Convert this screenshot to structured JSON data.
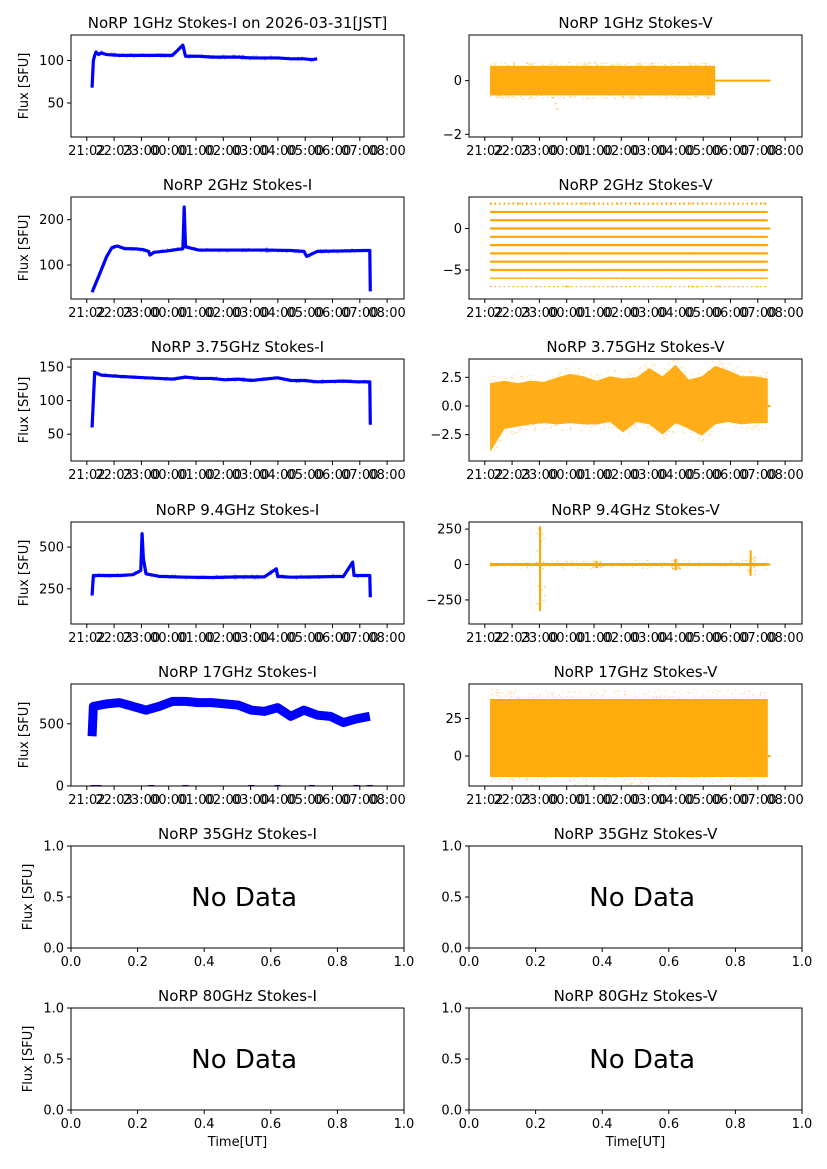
{
  "figure": {
    "colors": {
      "stokes_i": "#0000ff",
      "stokes_v": "#ffa500",
      "axis": "#000000",
      "background": "#ffffff"
    },
    "time_ticks": [
      "21:00",
      "22:00",
      "23:00",
      "00:00",
      "01:00",
      "02:00",
      "03:00",
      "04:00",
      "05:00",
      "06:00",
      "07:00",
      "08:00"
    ],
    "time_tick_display": [
      "21:02",
      "22:03",
      "23:00",
      "00:00",
      "01:00",
      "02:00",
      "03:00",
      "04:00",
      "05:00",
      "06:00",
      "07:00",
      "08:00"
    ],
    "xlabel": "Time[UT]",
    "no_data_text": "No Data"
  },
  "chart_data": [
    {
      "id": "p1i",
      "type": "scatter",
      "title": "NoRP 1GHz Stokes-I on 2026-03-31[JST]",
      "ylabel": "Flux [SFU]",
      "xlabel": "",
      "color": "#0000ff",
      "ylim": [
        10,
        130
      ],
      "yticks": [
        50,
        100
      ],
      "ytick_labels": [
        "50",
        "100"
      ],
      "xlim_hours": [
        -3.35,
        9.3
      ],
      "series": [
        {
          "values": [
            [
              -2.55,
              68
            ],
            [
              -2.5,
              100
            ],
            [
              -2.45,
              106
            ],
            [
              -2.4,
              110
            ],
            [
              -2.3,
              107
            ],
            [
              -2.2,
              109
            ],
            [
              -2.0,
              107
            ],
            [
              -1.5,
              106
            ],
            [
              -1.0,
              106
            ],
            [
              -0.5,
              106
            ],
            [
              0.0,
              106
            ],
            [
              0.5,
              106
            ],
            [
              0.9,
              118
            ],
            [
              1.0,
              105
            ],
            [
              1.5,
              105
            ],
            [
              2.0,
              104
            ],
            [
              2.5,
              104
            ],
            [
              3.0,
              104
            ],
            [
              3.5,
              103
            ],
            [
              4.0,
              103
            ],
            [
              4.5,
              103
            ],
            [
              5.0,
              102
            ],
            [
              5.5,
              102
            ],
            [
              5.8,
              101
            ],
            [
              6.0,
              102
            ]
          ]
        }
      ]
    },
    {
      "id": "p1v",
      "type": "scatter",
      "title": "NoRP 1GHz Stokes-V",
      "ylabel": "",
      "xlabel": "",
      "color": "#ffa500",
      "ylim": [
        -2.1,
        1.7
      ],
      "yticks": [
        -2,
        0
      ],
      "ytick_labels": [
        "−2",
        "0"
      ],
      "xlim_hours": [
        -3.35,
        9.3
      ],
      "series": [
        {
          "values": [
            [
              -2.55,
              0
            ],
            [
              -1.0,
              0
            ],
            [
              1.0,
              0
            ],
            [
              3.0,
              0
            ],
            [
              5.0,
              0
            ],
            [
              6.0,
              0
            ],
            [
              8.1,
              0
            ]
          ]
        }
      ],
      "band": {
        "from": -2.55,
        "to": 6.0,
        "low": -0.55,
        "high": 0.55
      },
      "tail": {
        "from": 6.0,
        "to": 8.1,
        "value": 0
      },
      "outliers": [
        [
          0.0,
          -1.05
        ],
        [
          -0.05,
          -0.85
        ]
      ]
    },
    {
      "id": "p2i",
      "type": "scatter",
      "title": "NoRP 2GHz Stokes-I",
      "ylabel": "Flux [SFU]",
      "xlabel": "",
      "color": "#0000ff",
      "ylim": [
        25,
        250
      ],
      "yticks": [
        100,
        200
      ],
      "ytick_labels": [
        "100",
        "200"
      ],
      "xlim_hours": [
        -3.35,
        9.3
      ],
      "series": [
        {
          "values": [
            [
              -2.55,
              40
            ],
            [
              -2.3,
              75
            ],
            [
              -2.0,
              118
            ],
            [
              -1.8,
              138
            ],
            [
              -1.6,
              142
            ],
            [
              -1.3,
              136
            ],
            [
              -1.0,
              136
            ],
            [
              -0.6,
              134
            ],
            [
              -0.4,
              130
            ],
            [
              -0.35,
              122
            ],
            [
              -0.2,
              128
            ],
            [
              0.3,
              131
            ],
            [
              0.9,
              136
            ],
            [
              0.95,
              228
            ],
            [
              1.0,
              140
            ],
            [
              1.5,
              133
            ],
            [
              2.0,
              133
            ],
            [
              3.0,
              133
            ],
            [
              4.0,
              133
            ],
            [
              5.0,
              132
            ],
            [
              5.5,
              130
            ],
            [
              5.6,
              119
            ],
            [
              6.0,
              130
            ],
            [
              7.0,
              131
            ],
            [
              7.8,
              132
            ],
            [
              8.0,
              132
            ],
            [
              8.02,
              42
            ]
          ]
        }
      ]
    },
    {
      "id": "p2v",
      "type": "scatter",
      "title": "NoRP 2GHz Stokes-V",
      "ylabel": "",
      "xlabel": "",
      "color": "#ffa500",
      "ylim": [
        -8.5,
        3.8
      ],
      "yticks": [
        -5,
        0
      ],
      "ytick_labels": [
        "−5",
        "0"
      ],
      "xlim_hours": [
        -3.35,
        9.3
      ],
      "series": [
        {
          "values": [
            [
              -2.55,
              0
            ],
            [
              8.0,
              0
            ]
          ]
        }
      ],
      "levels": [
        3,
        2,
        1,
        0,
        -1,
        -2,
        -3,
        -4,
        -5,
        -6,
        -7
      ],
      "levels_range": [
        -2.55,
        8.0
      ],
      "tail": {
        "from": 8.0,
        "to": 8.1,
        "value": 0
      }
    },
    {
      "id": "p3i",
      "type": "scatter",
      "title": "NoRP 3.75GHz Stokes-I",
      "ylabel": "Flux [SFU]",
      "xlabel": "",
      "color": "#0000ff",
      "ylim": [
        10,
        162
      ],
      "yticks": [
        50,
        100,
        150
      ],
      "ytick_labels": [
        "50",
        "100",
        "150"
      ],
      "xlim_hours": [
        -3.35,
        9.3
      ],
      "series": [
        {
          "values": [
            [
              -2.55,
              60
            ],
            [
              -2.45,
              142
            ],
            [
              -2.2,
              138
            ],
            [
              -1.5,
              136
            ],
            [
              -1.0,
              135
            ],
            [
              -0.5,
              134
            ],
            [
              0.0,
              133
            ],
            [
              0.5,
              132
            ],
            [
              1.0,
              135
            ],
            [
              1.5,
              133
            ],
            [
              2.0,
              133
            ],
            [
              2.5,
              131
            ],
            [
              3.0,
              132
            ],
            [
              3.5,
              130
            ],
            [
              4.0,
              132
            ],
            [
              4.5,
              134
            ],
            [
              5.0,
              130
            ],
            [
              5.5,
              130
            ],
            [
              6.0,
              128
            ],
            [
              7.0,
              129
            ],
            [
              7.5,
              128
            ],
            [
              8.0,
              128
            ],
            [
              8.02,
              64
            ]
          ]
        }
      ]
    },
    {
      "id": "p3v",
      "type": "scatter",
      "title": "NoRP 3.75GHz Stokes-V",
      "ylabel": "",
      "xlabel": "",
      "color": "#ffa500",
      "ylim": [
        -4.8,
        4.1
      ],
      "yticks": [
        -2.5,
        0.0,
        2.5
      ],
      "ytick_labels": [
        "−2.5",
        "0.0",
        "2.5"
      ],
      "xlim_hours": [
        -3.35,
        9.3
      ],
      "series": [
        {
          "values": [
            [
              -2.55,
              0
            ],
            [
              8.1,
              0
            ]
          ]
        }
      ],
      "band_profile": [
        [
          -2.55,
          -4.0,
          2.0
        ],
        [
          -2.0,
          -2.0,
          2.2
        ],
        [
          -1.5,
          -1.8,
          2.0
        ],
        [
          -1.0,
          -1.6,
          2.2
        ],
        [
          -0.5,
          -1.5,
          2.1
        ],
        [
          0.0,
          -1.6,
          2.5
        ],
        [
          0.5,
          -1.5,
          2.8
        ],
        [
          1.0,
          -1.6,
          2.6
        ],
        [
          1.5,
          -1.6,
          2.2
        ],
        [
          2.0,
          -1.4,
          2.6
        ],
        [
          2.5,
          -2.3,
          2.4
        ],
        [
          3.0,
          -1.4,
          2.5
        ],
        [
          3.5,
          -1.6,
          3.3
        ],
        [
          4.0,
          -2.5,
          2.6
        ],
        [
          4.5,
          -1.5,
          3.6
        ],
        [
          5.0,
          -2.0,
          2.3
        ],
        [
          5.5,
          -2.6,
          2.6
        ],
        [
          6.0,
          -1.6,
          3.5
        ],
        [
          6.5,
          -1.4,
          3.1
        ],
        [
          7.0,
          -1.6,
          2.6
        ],
        [
          7.5,
          -1.5,
          2.6
        ],
        [
          8.0,
          -1.5,
          2.4
        ]
      ],
      "tail": {
        "from": 8.0,
        "to": 8.1,
        "value": 0
      }
    },
    {
      "id": "p4i",
      "type": "scatter",
      "title": "NoRP 9.4GHz Stokes-I",
      "ylabel": "Flux [SFU]",
      "xlabel": "",
      "color": "#0000ff",
      "ylim": [
        40,
        650
      ],
      "yticks": [
        250,
        500
      ],
      "ytick_labels": [
        "250",
        "500"
      ],
      "xlim_hours": [
        -3.35,
        9.3
      ],
      "series": [
        {
          "values": [
            [
              -2.55,
              210
            ],
            [
              -2.5,
              330
            ],
            [
              -2.0,
              330
            ],
            [
              -1.5,
              330
            ],
            [
              -1.0,
              335
            ],
            [
              -0.7,
              360
            ],
            [
              -0.65,
              580
            ],
            [
              -0.6,
              430
            ],
            [
              -0.5,
              340
            ],
            [
              0.0,
              325
            ],
            [
              1.0,
              320
            ],
            [
              2.0,
              318
            ],
            [
              3.0,
              322
            ],
            [
              4.0,
              322
            ],
            [
              4.45,
              370
            ],
            [
              4.5,
              325
            ],
            [
              5.0,
              320
            ],
            [
              6.0,
              322
            ],
            [
              7.0,
              325
            ],
            [
              7.35,
              410
            ],
            [
              7.4,
              330
            ],
            [
              8.0,
              330
            ],
            [
              8.02,
              200
            ]
          ]
        }
      ]
    },
    {
      "id": "p4v",
      "type": "scatter",
      "title": "NoRP 9.4GHz Stokes-V",
      "ylabel": "",
      "xlabel": "",
      "color": "#ffa500",
      "ylim": [
        -420,
        300
      ],
      "yticks": [
        -250,
        0,
        250
      ],
      "ytick_labels": [
        "−250",
        "0",
        "250"
      ],
      "xlim_hours": [
        -3.35,
        9.3
      ],
      "series": [
        {
          "values": [
            [
              -2.55,
              0
            ],
            [
              8.1,
              0
            ]
          ]
        }
      ],
      "bursts": [
        [
          -0.65,
          270,
          -330
        ],
        [
          4.5,
          40,
          -40
        ],
        [
          7.35,
          100,
          -80
        ],
        [
          1.5,
          25,
          -25
        ]
      ],
      "tail": {
        "from": 8.0,
        "to": 8.1,
        "value": 0
      }
    },
    {
      "id": "p5i",
      "type": "scatter",
      "title": "NoRP 17GHz Stokes-I",
      "ylabel": "Flux [SFU]",
      "xlabel": "",
      "color": "#0000ff",
      "ylim": [
        0,
        820
      ],
      "yticks": [
        0,
        500
      ],
      "ytick_labels": [
        "0",
        "500"
      ],
      "xlim_hours": [
        -3.35,
        9.3
      ],
      "series": [
        {
          "values": [
            [
              -2.55,
              400
            ],
            [
              -2.5,
              640
            ],
            [
              -2.0,
              660
            ],
            [
              -1.5,
              670
            ],
            [
              -1.0,
              640
            ],
            [
              -0.5,
              610
            ],
            [
              0.0,
              640
            ],
            [
              0.5,
              680
            ],
            [
              1.0,
              680
            ],
            [
              1.5,
              670
            ],
            [
              2.0,
              670
            ],
            [
              2.5,
              660
            ],
            [
              3.0,
              650
            ],
            [
              3.5,
              610
            ],
            [
              4.0,
              600
            ],
            [
              4.5,
              630
            ],
            [
              5.0,
              560
            ],
            [
              5.5,
              610
            ],
            [
              6.0,
              570
            ],
            [
              6.5,
              560
            ],
            [
              7.0,
              510
            ],
            [
              7.5,
              540
            ],
            [
              8.0,
              560
            ]
          ]
        }
      ],
      "floor_dots": [
        -2.5,
        -2.3,
        -0.3,
        1.0,
        3.5,
        4.5,
        5.8,
        7.5,
        8.0
      ]
    },
    {
      "id": "p5v",
      "type": "scatter",
      "title": "NoRP 17GHz Stokes-V",
      "ylabel": "",
      "xlabel": "",
      "color": "#ffa500",
      "ylim": [
        -20,
        48
      ],
      "yticks": [
        0,
        25
      ],
      "ytick_labels": [
        "0",
        "25"
      ],
      "xlim_hours": [
        -3.35,
        9.3
      ],
      "series": [
        {
          "values": [
            [
              -2.55,
              0
            ],
            [
              8.1,
              0
            ]
          ]
        }
      ],
      "band": {
        "from": -2.55,
        "to": 8.0,
        "low": -14,
        "high": 38
      },
      "tail": {
        "from": 8.0,
        "to": 8.1,
        "value": 0
      }
    },
    {
      "id": "p6i",
      "type": "empty",
      "title": "NoRP 35GHz Stokes-I",
      "ylabel": "Flux [SFU]",
      "xlabel": "",
      "text": "No Data",
      "xlim": [
        0.0,
        1.0
      ],
      "ylim": [
        0.0,
        1.0
      ],
      "xticks": [
        "0.0",
        "0.2",
        "0.4",
        "0.6",
        "0.8",
        "1.0"
      ],
      "yticks": [
        "0.0",
        "0.5",
        "1.0"
      ]
    },
    {
      "id": "p6v",
      "type": "empty",
      "title": "NoRP 35GHz Stokes-V",
      "ylabel": "",
      "xlabel": "",
      "text": "No Data",
      "xlim": [
        0.0,
        1.0
      ],
      "ylim": [
        0.0,
        1.0
      ],
      "xticks": [
        "0.0",
        "0.2",
        "0.4",
        "0.6",
        "0.8",
        "1.0"
      ],
      "yticks": [
        "0.0",
        "0.5",
        "1.0"
      ]
    },
    {
      "id": "p7i",
      "type": "empty",
      "title": "NoRP 80GHz Stokes-I",
      "ylabel": "Flux [SFU]",
      "xlabel": "Time[UT]",
      "text": "No Data",
      "xlim": [
        0.0,
        1.0
      ],
      "ylim": [
        0.0,
        1.0
      ],
      "xticks": [
        "0.0",
        "0.2",
        "0.4",
        "0.6",
        "0.8",
        "1.0"
      ],
      "yticks": [
        "0.0",
        "0.5",
        "1.0"
      ]
    },
    {
      "id": "p7v",
      "type": "empty",
      "title": "NoRP 80GHz Stokes-V",
      "ylabel": "",
      "xlabel": "Time[UT]",
      "text": "No Data",
      "xlim": [
        0.0,
        1.0
      ],
      "ylim": [
        0.0,
        1.0
      ],
      "xticks": [
        "0.0",
        "0.2",
        "0.4",
        "0.6",
        "0.8",
        "1.0"
      ],
      "yticks": [
        "0.0",
        "0.5",
        "1.0"
      ]
    }
  ]
}
